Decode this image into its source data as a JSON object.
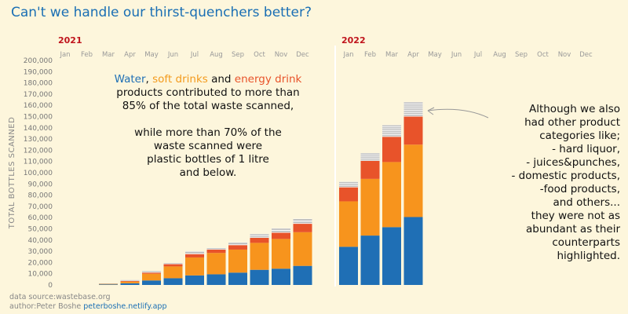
{
  "title": "Can't we handle our thirst-quenchers better?",
  "colors": {
    "water": "#1f6fb5",
    "soft": "#f7941d",
    "energy": "#e8532a",
    "other": "#bdbdbd",
    "title": "#1a6fb4"
  },
  "annotation_left": {
    "w1": "Water",
    "w2": ", ",
    "w3": "soft drinks",
    "w4": " and ",
    "w5": "energy drink",
    "l2": "products contributed to more than",
    "l3": "85% of the total waste scanned,",
    "l4": "while more than 70% of the",
    "l5": "waste scanned were",
    "l6": "plastic bottles of 1 litre",
    "l7": "and below."
  },
  "annotation_right": {
    "lines": [
      "Although we also",
      "had other product",
      "categories like;",
      "- hard liquor,",
      "- juices&punches,",
      "- domestic products,",
      "-food products,",
      "and others...",
      "they were not as",
      "abundant as their",
      "counterparts",
      "highlighted."
    ]
  },
  "source": {
    "line1": "data source:wastebase.org",
    "line2": "author:Peter Boshe ",
    "link": "peterboshe.netlify.app"
  },
  "chart_data": {
    "type": "bar",
    "stacked": true,
    "ylabel": "TOTAL BOTTLES SCANNED",
    "ylim": [
      0,
      200000
    ],
    "yticks": [
      0,
      10000,
      20000,
      30000,
      40000,
      50000,
      60000,
      70000,
      80000,
      90000,
      100000,
      110000,
      120000,
      130000,
      140000,
      150000,
      160000,
      170000,
      180000,
      190000,
      200000
    ],
    "panels": [
      {
        "year": "2021",
        "categories": [
          "Jan",
          "Feb",
          "Mar",
          "Apr",
          "May",
          "Jun",
          "Jul",
          "Aug",
          "Sep",
          "Oct",
          "Nov",
          "Dec"
        ],
        "series": [
          {
            "values": [
              0,
              0,
              500,
              1500,
              4000,
              6000,
              8500,
              9500,
              11000,
              13500,
              14500,
              17000
            ]
          },
          {
            "values": [
              0,
              0,
              500,
              1500,
              6000,
              10500,
              16000,
              19000,
              20500,
              24000,
              26500,
              30000
            ]
          },
          {
            "values": [
              0,
              0,
              0,
              500,
              1000,
              2000,
              3000,
              3000,
              4000,
              4500,
              5500,
              7500
            ]
          },
          {
            "values": [
              0,
              0,
              500,
              1000,
              1500,
              1000,
              2500,
              1500,
              2500,
              3500,
              4000,
              4500
            ]
          }
        ]
      },
      {
        "year": "2022",
        "categories": [
          "Jan",
          "Feb",
          "Mar",
          "Apr",
          "May",
          "Jun",
          "Jul",
          "Aug",
          "Sep",
          "Oct",
          "Nov",
          "Dec"
        ],
        "series": [
          {
            "values": [
              34000,
              44000,
              51500,
              60500,
              0,
              0,
              0,
              0,
              0,
              0,
              0,
              0
            ]
          },
          {
            "values": [
              40500,
              50500,
              58000,
              64500,
              0,
              0,
              0,
              0,
              0,
              0,
              0,
              0
            ]
          },
          {
            "values": [
              12500,
              16000,
              22500,
              25000,
              0,
              0,
              0,
              0,
              0,
              0,
              0,
              0
            ]
          },
          {
            "values": [
              5000,
              7000,
              10500,
              13000,
              0,
              0,
              0,
              0,
              0,
              0,
              0,
              0
            ]
          }
        ]
      }
    ]
  }
}
